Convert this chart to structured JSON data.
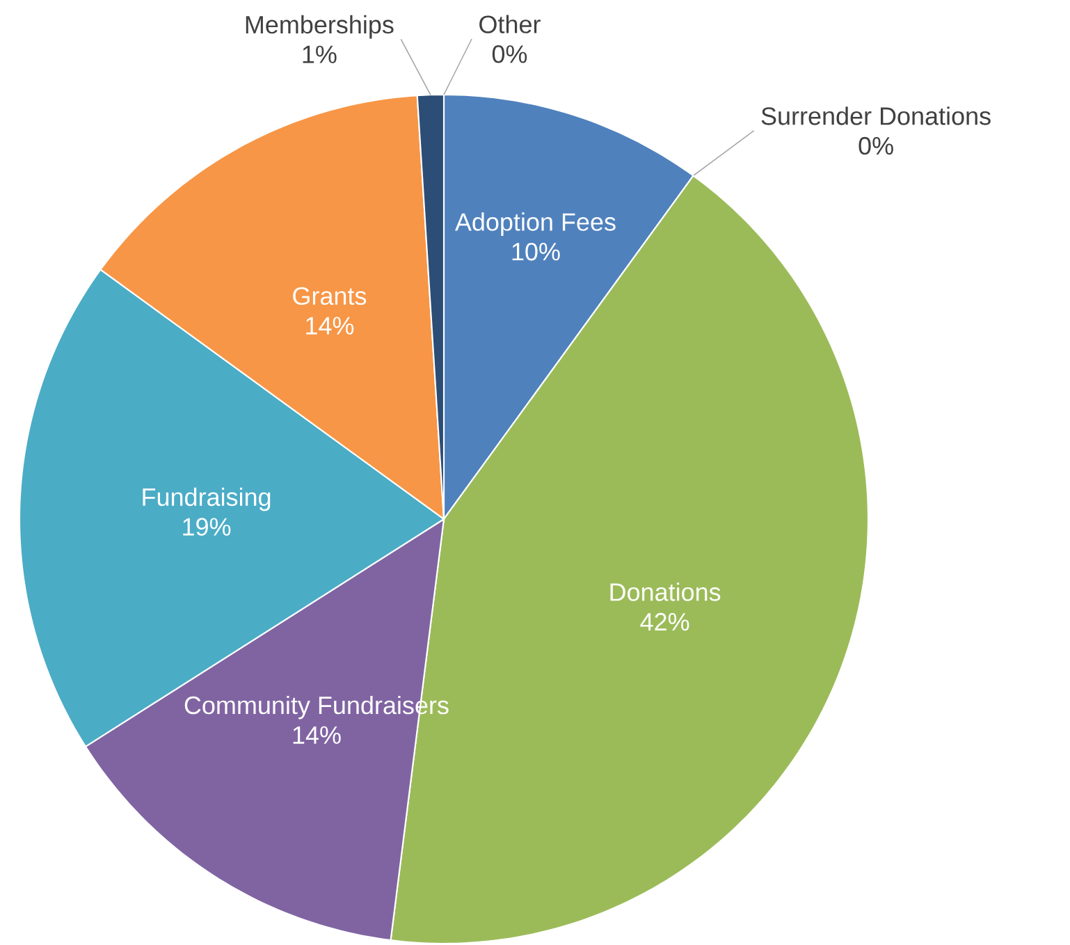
{
  "chart_data": {
    "type": "pie",
    "categories": [
      "Adoption Fees",
      "Surrender Donations",
      "Donations",
      "Community Fundraisers",
      "Fundraising",
      "Grants",
      "Memberships",
      "Other"
    ],
    "values": [
      10,
      0,
      42,
      14,
      19,
      14,
      1,
      0
    ],
    "value_labels": [
      "10%",
      "0%",
      "42%",
      "14%",
      "19%",
      "14%",
      "1%",
      "0%"
    ],
    "colors": [
      "#4f81bd",
      "#c0504d",
      "#9bbb59",
      "#8064a2",
      "#4bacc6",
      "#f79646",
      "#2c4d75",
      "#772c2a"
    ]
  }
}
